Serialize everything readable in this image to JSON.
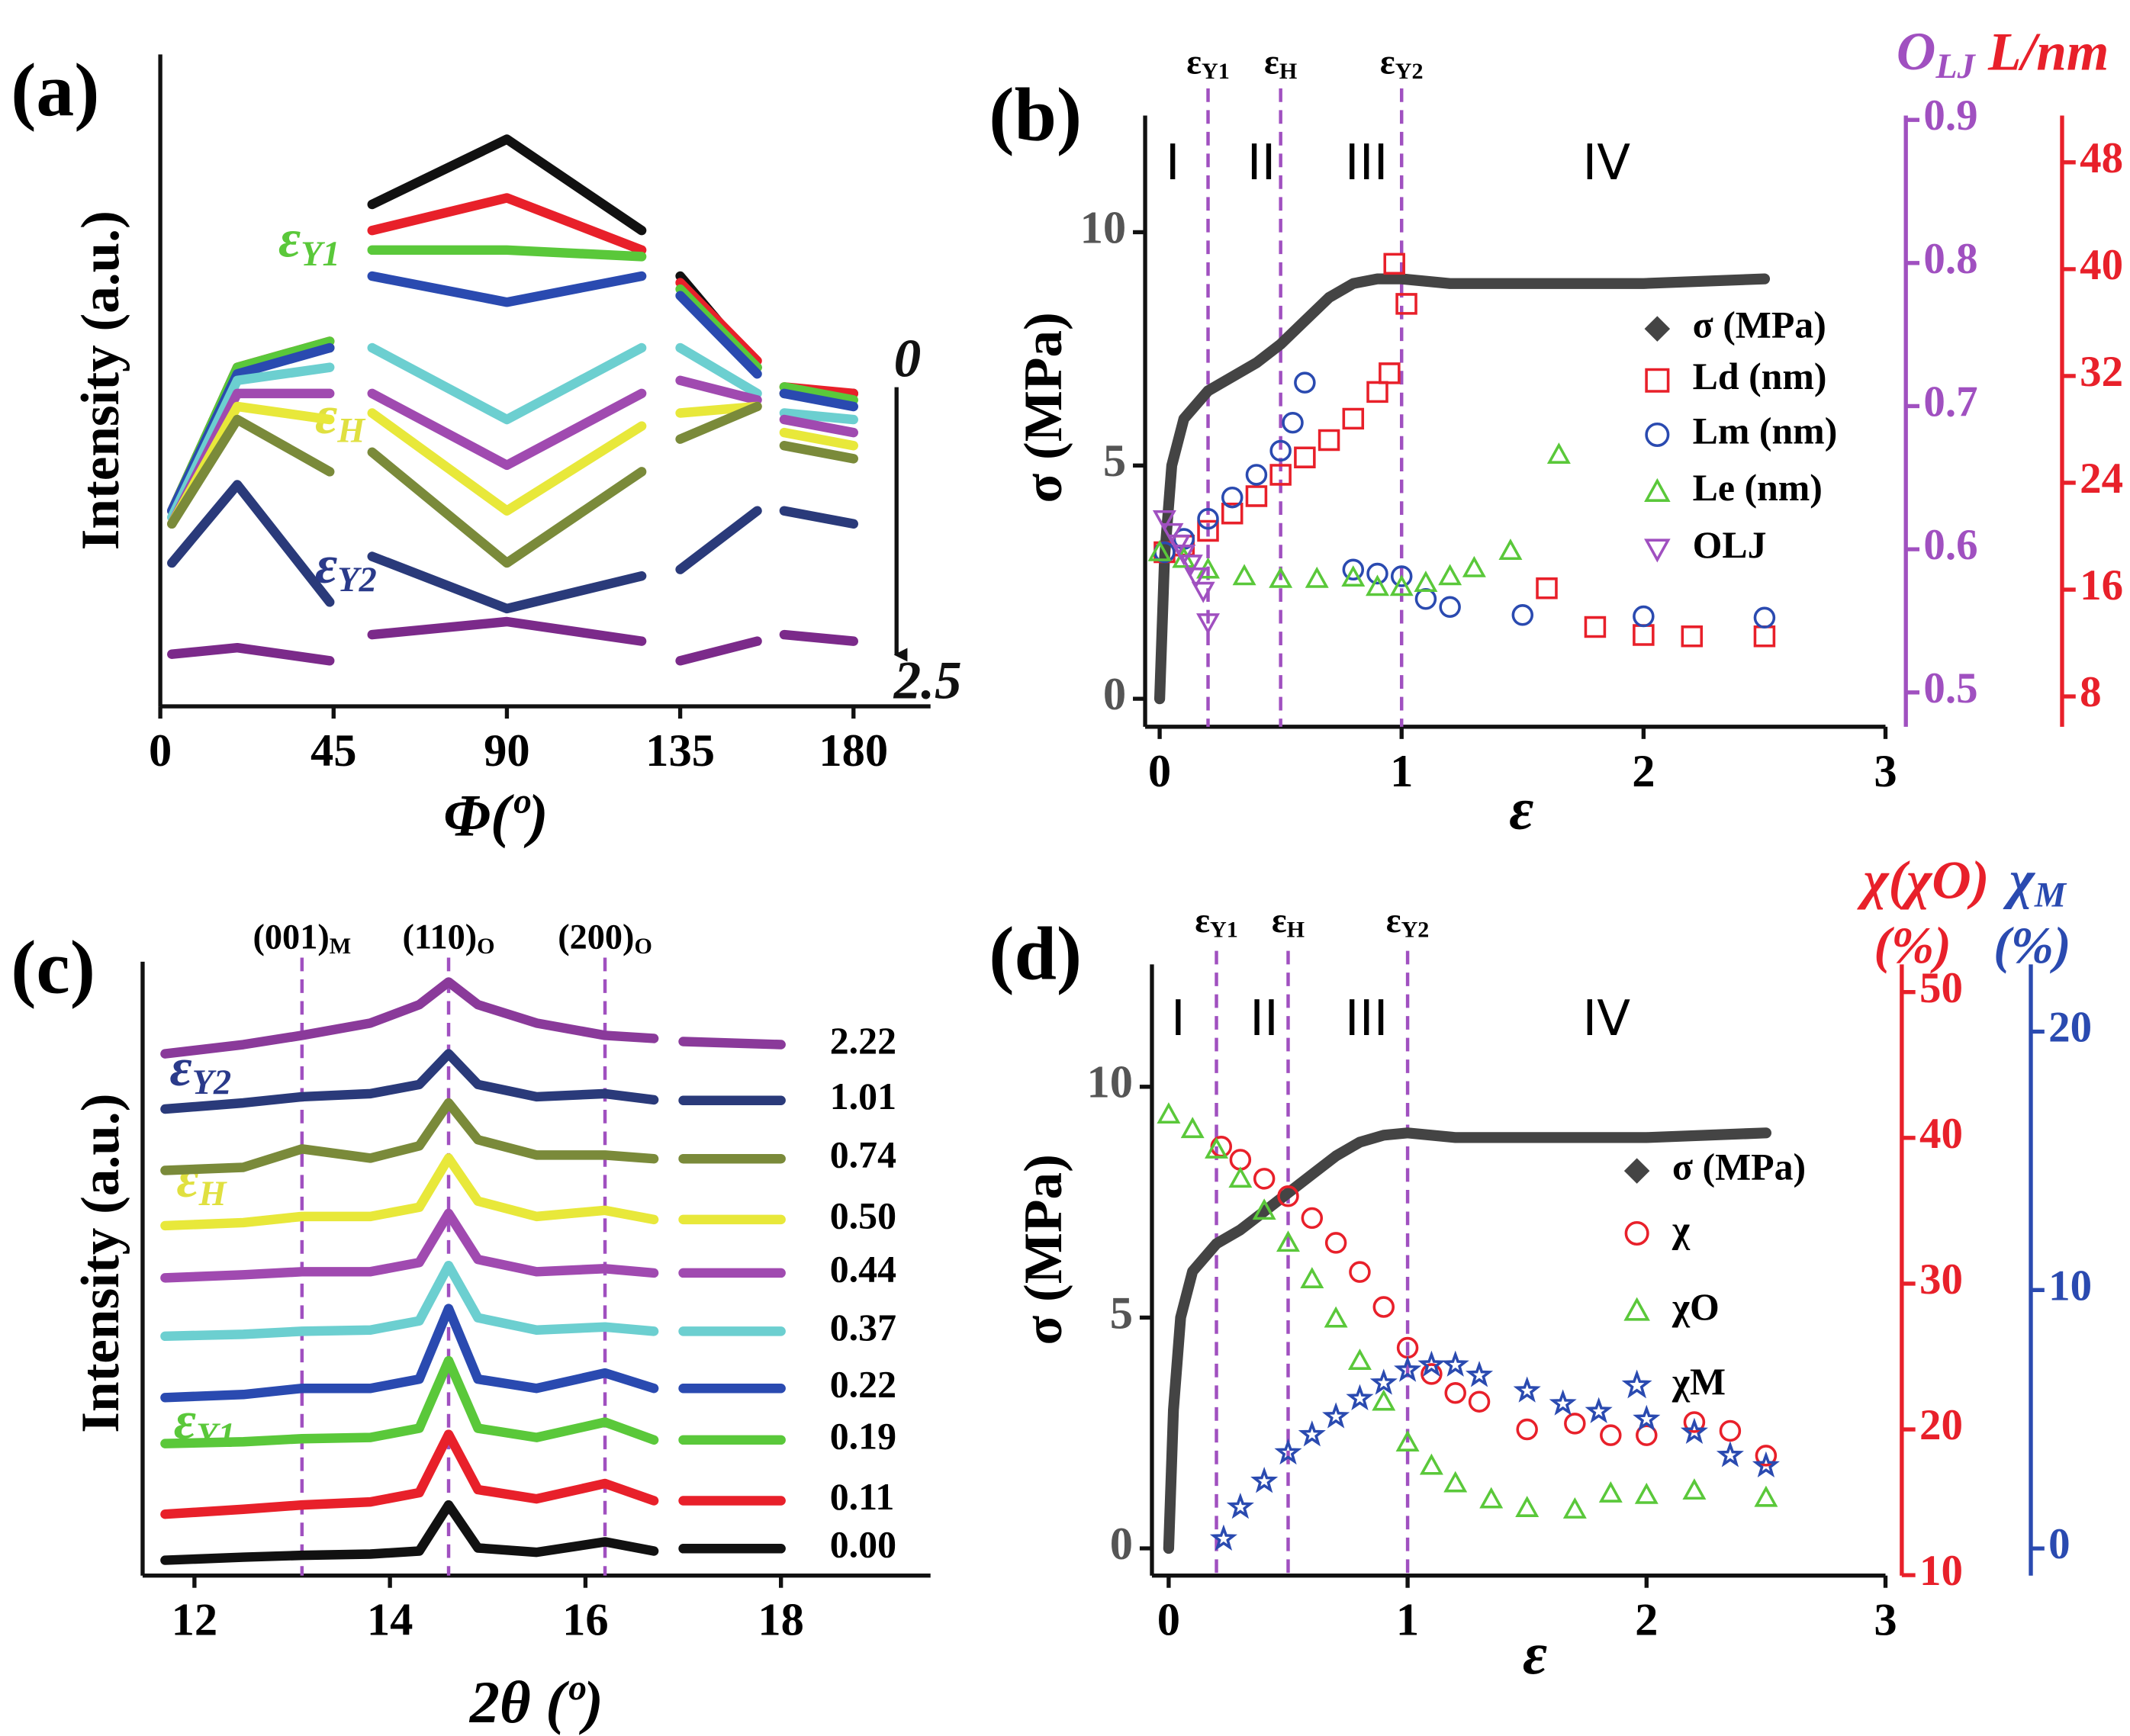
{
  "chart_data": [
    {
      "type": "line",
      "title": "(a)",
      "xlabel": "Φ(º)",
      "ylabel": "Intensity (a.u.)",
      "xlim": [
        0,
        200
      ],
      "xticks": [
        0,
        45,
        90,
        135,
        180
      ],
      "ylim": [
        0,
        100
      ],
      "x": [
        3,
        20,
        44,
        50,
        55,
        90,
        125,
        130,
        135,
        155,
        158,
        162,
        180
      ],
      "series": [
        {
          "color": "#111111",
          "values": [
            30,
            52,
            55,
            null,
            77,
            87,
            73,
            null,
            66,
            52,
            null,
            48,
            48
          ]
        },
        {
          "color": "#e8202a",
          "values": [
            30,
            52,
            56,
            null,
            73,
            78,
            70,
            null,
            65,
            53,
            null,
            49,
            48
          ]
        },
        {
          "color": "#5ac83a",
          "values": [
            30,
            52,
            56,
            null,
            70,
            70,
            69,
            null,
            64,
            52,
            null,
            49,
            47
          ]
        },
        {
          "color": "#2a4ab0",
          "values": [
            30,
            51,
            55,
            null,
            66,
            62,
            66,
            null,
            63,
            51,
            null,
            48,
            46
          ]
        },
        {
          "color": "#6ccfd0",
          "values": [
            29,
            50,
            52,
            null,
            55,
            44,
            55,
            null,
            55,
            48,
            null,
            45,
            44
          ]
        },
        {
          "color": "#a04ab0",
          "values": [
            28,
            48,
            48,
            null,
            48,
            37,
            48,
            null,
            50,
            47,
            null,
            44,
            42
          ]
        },
        {
          "color": "#e8e83a",
          "values": [
            28,
            46,
            44,
            null,
            45,
            30,
            43,
            null,
            45,
            46,
            null,
            42,
            40
          ]
        },
        {
          "color": "#7a8a3a",
          "values": [
            28,
            44,
            36,
            null,
            39,
            22,
            36,
            null,
            41,
            46,
            null,
            40,
            38
          ]
        },
        {
          "color": "#2a3a7a",
          "values": [
            22,
            34,
            16,
            null,
            23,
            15,
            20,
            null,
            21,
            30,
            null,
            30,
            28
          ]
        },
        {
          "color": "#7b2a8a",
          "values": [
            8,
            9,
            7,
            null,
            11,
            13,
            10,
            null,
            7,
            10,
            null,
            11,
            10
          ]
        }
      ],
      "annotations": [
        {
          "text": "ε",
          "sub": "Y1",
          "color": "#5ac83a"
        },
        {
          "text": "ε",
          "sub": "H",
          "color": "#e0e040"
        },
        {
          "text": "ε",
          "sub": "Y2",
          "color": "#2a3a8a"
        },
        {
          "text": "0",
          "color": "#111111"
        },
        {
          "text": "2.5",
          "color": "#111111"
        }
      ]
    },
    {
      "type": "scatter",
      "title": "(b)",
      "xlabel": "ε",
      "ylabel": "σ (MPa)",
      "xlim": [
        -0.06,
        3
      ],
      "xticks": [
        0,
        1,
        2,
        3
      ],
      "ylim": [
        -0.6,
        12.5
      ],
      "yticks": [
        0,
        5,
        10
      ],
      "y2lim": [
        0.476,
        0.903
      ],
      "y2ticks": [
        0.5,
        0.6,
        0.7,
        0.8,
        0.9
      ],
      "y2color": "#a050c0",
      "y2label": {
        "text": "O",
        "sub": "LJ"
      },
      "y3lim": [
        5.73,
        51.5
      ],
      "y3ticks": [
        8,
        16,
        24,
        32,
        40,
        48
      ],
      "y3color": "#e8202a",
      "y3label": "L/nm",
      "vlines": [
        0.2,
        0.5,
        1.0
      ],
      "vline_labels": [
        {
          "text": "ε",
          "sub": "Y1"
        },
        {
          "text": "ε",
          "sub": "H"
        },
        {
          "text": "ε",
          "sub": "Y2"
        }
      ],
      "regions": [
        "I",
        "II",
        "III",
        "IV"
      ],
      "series": [
        {
          "name": "σ (MPa)",
          "color": "#444444",
          "marker": "diamond",
          "line": true,
          "x": [
            0,
            0.02,
            0.05,
            0.1,
            0.2,
            0.3,
            0.4,
            0.5,
            0.6,
            0.7,
            0.8,
            0.9,
            1.0,
            1.2,
            1.5,
            2.0,
            2.5
          ],
          "values": [
            0,
            3,
            5,
            6,
            6.6,
            6.9,
            7.2,
            7.6,
            8.1,
            8.6,
            8.9,
            9.0,
            9.0,
            8.9,
            8.9,
            8.9,
            9.0
          ]
        },
        {
          "name": "Ld (nm)",
          "color": "#e8202a",
          "marker": "square",
          "axis": "y3",
          "x": [
            0.02,
            0.1,
            0.2,
            0.3,
            0.4,
            0.5,
            0.6,
            0.7,
            0.8,
            0.9,
            0.95,
            0.97,
            1.02,
            1.6,
            1.8,
            2.0,
            2.2,
            2.5
          ],
          "values": [
            18.8,
            19.3,
            20.4,
            21.7,
            23,
            24.6,
            25.9,
            27.2,
            28.8,
            30.8,
            32.2,
            40.4,
            37.4,
            16.1,
            13.2,
            12.6,
            12.5,
            12.5
          ]
        },
        {
          "name": "Lm (nm)",
          "color": "#2a4ab0",
          "marker": "circle",
          "axis": "y3",
          "x": [
            0.02,
            0.1,
            0.2,
            0.3,
            0.4,
            0.5,
            0.55,
            0.6,
            0.8,
            0.9,
            1.0,
            1.1,
            1.2,
            1.5,
            2.0,
            2.5
          ],
          "values": [
            18.8,
            19.8,
            21.3,
            22.9,
            24.6,
            26.4,
            28.5,
            31.5,
            17.5,
            17.2,
            17.0,
            15.3,
            14.7,
            14.1,
            14.0,
            13.9
          ]
        },
        {
          "name": "Le (nm)",
          "color": "#5ac83a",
          "marker": "triangle",
          "axis": "y3",
          "x": [
            0,
            0.1,
            0.2,
            0.35,
            0.5,
            0.65,
            0.8,
            0.9,
            1.0,
            1.1,
            1.2,
            1.3,
            1.45,
            1.65
          ],
          "values": [
            18.8,
            18.3,
            17.5,
            17.0,
            16.8,
            16.8,
            16.9,
            16.2,
            16.2,
            16.5,
            17.0,
            17.6,
            18.9,
            26.1
          ]
        },
        {
          "name": "OLJ",
          "color": "#a050c0",
          "marker": "triangle-down",
          "axis": "y2",
          "x": [
            0.02,
            0.05,
            0.08,
            0.1,
            0.13,
            0.15,
            0.18,
            0.2
          ],
          "values": [
            0.621,
            0.612,
            0.604,
            0.597,
            0.59,
            0.581,
            0.571,
            0.549
          ]
        }
      ]
    },
    {
      "type": "line",
      "title": "(c)",
      "xlabel": "2θ (º)",
      "ylabel": "Intensity (a.u.)",
      "xlim": [
        11.47,
        19.53
      ],
      "xticks": [
        12,
        14,
        16,
        18
      ],
      "ylim": [
        0,
        100
      ],
      "x": [
        11.7,
        12.5,
        13.1,
        13.8,
        14.3,
        14.6,
        14.9,
        15.5,
        16.2,
        16.7,
        16.8,
        17.0,
        18.0
      ],
      "vlines": [
        13.1,
        14.6,
        16.2
      ],
      "vline_labels": [
        {
          "text": "(001)",
          "sub": "M"
        },
        {
          "text": "(110)",
          "sub": "O"
        },
        {
          "text": "(200)",
          "sub": "O"
        }
      ],
      "series": [
        {
          "name": "2.22",
          "color": "#8a3a9a",
          "values": [
            85,
            86.5,
            88,
            90,
            93,
            96.7,
            93,
            90,
            88,
            87.5,
            null,
            87,
            86.5
          ]
        },
        {
          "name": "1.01",
          "color": "#2a3a7a",
          "values": [
            76,
            77,
            78,
            78.5,
            80,
            85,
            80,
            78,
            78.5,
            77.5,
            null,
            77.4,
            77.4
          ]
        },
        {
          "name": "0.74",
          "color": "#7a8a3a",
          "values": [
            66,
            66.5,
            69.5,
            68,
            70,
            77,
            71,
            68.5,
            68.5,
            67.9,
            null,
            67.9,
            67.9
          ]
        },
        {
          "name": "0.50",
          "color": "#e8e83a",
          "values": [
            57,
            57.5,
            58.5,
            58.5,
            60,
            68,
            61,
            58.5,
            59.5,
            58,
            null,
            58,
            58
          ]
        },
        {
          "name": "0.44",
          "color": "#a04ab0",
          "values": [
            48.5,
            49,
            49.5,
            49.5,
            51,
            59,
            51.5,
            49.5,
            50,
            49.3,
            null,
            49.3,
            49.3
          ]
        },
        {
          "name": "0.37",
          "color": "#6ccfd0",
          "values": [
            39,
            39.3,
            39.8,
            40,
            41.5,
            50.5,
            42,
            40,
            40.5,
            39.8,
            null,
            39.8,
            39.8
          ]
        },
        {
          "name": "0.22",
          "color": "#2a4ab0",
          "values": [
            29,
            29.5,
            30.5,
            30.5,
            32,
            43.5,
            32,
            30.5,
            33,
            30.5,
            null,
            30.5,
            30.5
          ]
        },
        {
          "name": "0.19",
          "color": "#5ac83a",
          "values": [
            21.5,
            21.8,
            22.3,
            22.5,
            24,
            35,
            24,
            22.5,
            25,
            22.1,
            null,
            22.1,
            22.1
          ]
        },
        {
          "name": "0.11",
          "color": "#e8202a",
          "values": [
            10,
            10.8,
            11.5,
            12,
            13.5,
            23,
            14,
            12.5,
            15,
            12.2,
            null,
            12.2,
            12.2
          ]
        },
        {
          "name": "0.00",
          "color": "#111111",
          "values": [
            2.5,
            3,
            3.3,
            3.5,
            4,
            11.5,
            4.5,
            3.8,
            5.5,
            4,
            null,
            4.4,
            4.4
          ]
        }
      ],
      "annotations": [
        {
          "text": "ε",
          "sub": "Y2",
          "color": "#2a3a8a"
        },
        {
          "text": "ε",
          "sub": "H",
          "color": "#e0e040"
        },
        {
          "text": "ε",
          "sub": "Y1",
          "color": "#5ac83a"
        }
      ]
    },
    {
      "type": "scatter",
      "title": "(d)",
      "xlabel": "ε",
      "ylabel": "σ (MPa)",
      "xlim": [
        -0.07,
        3
      ],
      "xticks": [
        0,
        1,
        2,
        3
      ],
      "ylim": [
        -0.59,
        12.65
      ],
      "yticks": [
        0,
        5,
        10
      ],
      "y2lim": [
        9.97,
        51.9
      ],
      "y2ticks": [
        10,
        20,
        30,
        40,
        50
      ],
      "y2color": "#e8202a",
      "y2label": "χ(χO)",
      "y2unit": "(%)",
      "y3lim": [
        -1.05,
        22.6
      ],
      "y3ticks": [
        0,
        10,
        20
      ],
      "y3color": "#2a4ab0",
      "y3label": {
        "text": "χ",
        "sub": "M"
      },
      "y3unit": "(%)",
      "vlines": [
        0.2,
        0.5,
        1.0
      ],
      "vline_labels": [
        {
          "text": "ε",
          "sub": "Y1"
        },
        {
          "text": "ε",
          "sub": "H"
        },
        {
          "text": "ε",
          "sub": "Y2"
        }
      ],
      "regions": [
        "I",
        "II",
        "III",
        "IV"
      ],
      "series": [
        {
          "name": "σ (MPa)",
          "color": "#444444",
          "marker": "diamond",
          "line": true,
          "x": [
            0,
            0.02,
            0.05,
            0.1,
            0.2,
            0.3,
            0.4,
            0.5,
            0.6,
            0.7,
            0.8,
            0.9,
            1.0,
            1.2,
            1.5,
            2.0,
            2.5
          ],
          "values": [
            0,
            3,
            5,
            6,
            6.6,
            6.9,
            7.3,
            7.7,
            8.1,
            8.5,
            8.8,
            8.95,
            9.0,
            8.9,
            8.9,
            8.9,
            9.0
          ]
        },
        {
          "name": "χ",
          "color": "#e8202a",
          "marker": "circle",
          "axis": "y2",
          "x": [
            0.22,
            0.3,
            0.4,
            0.5,
            0.6,
            0.7,
            0.8,
            0.9,
            1.0,
            1.1,
            1.2,
            1.3,
            1.5,
            1.7,
            1.85,
            2.0,
            2.2,
            2.35,
            2.5
          ],
          "values": [
            39.4,
            38.5,
            37.2,
            36,
            34.5,
            32.8,
            30.8,
            28.4,
            25.6,
            23.8,
            22.5,
            21.9,
            20,
            20.4,
            19.6,
            19.6,
            20.5,
            19.9,
            18.2
          ]
        },
        {
          "name": "χO",
          "color": "#5ac83a",
          "marker": "triangle",
          "axis": "y2",
          "x": [
            0,
            0.1,
            0.2,
            0.3,
            0.4,
            0.5,
            0.6,
            0.7,
            0.8,
            0.9,
            1.0,
            1.1,
            1.2,
            1.35,
            1.5,
            1.7,
            1.85,
            2.0,
            2.2,
            2.5
          ],
          "values": [
            41.6,
            40.6,
            39.2,
            37.2,
            35,
            32.8,
            30.3,
            27.6,
            24.7,
            21.9,
            19.1,
            17.5,
            16.3,
            15.2,
            14.6,
            14.5,
            15.6,
            15.5,
            15.8,
            15.3
          ]
        },
        {
          "name": "χM",
          "color": "#2a4ab0",
          "marker": "star",
          "axis": "y3",
          "x": [
            0.23,
            0.3,
            0.4,
            0.5,
            0.6,
            0.7,
            0.8,
            0.9,
            1.0,
            1.1,
            1.2,
            1.3,
            1.5,
            1.65,
            1.8,
            2.0,
            2.2,
            2.35,
            2.5
          ],
          "values": [
            0.37,
            1.6,
            2.6,
            3.7,
            4.4,
            5.1,
            5.8,
            6.4,
            6.9,
            7.1,
            7.1,
            6.7,
            6.1,
            5.6,
            5.3,
            5.0,
            4.5,
            3.6,
            3.2
          ]
        }
      ]
    }
  ]
}
